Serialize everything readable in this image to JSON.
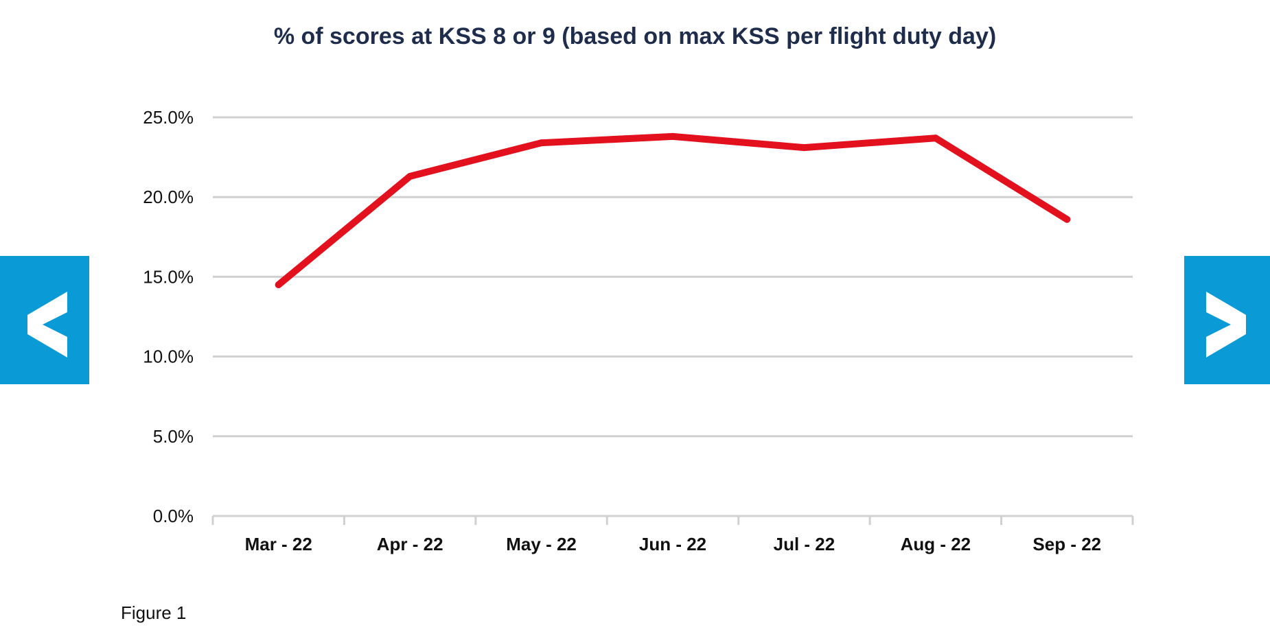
{
  "chart_data": {
    "type": "line",
    "title": "% of scores at KSS 8 or 9 (based on max KSS per flight duty day)",
    "categories": [
      "Mar - 22",
      "Apr - 22",
      "May - 22",
      "Jun - 22",
      "Jul - 22",
      "Aug - 22",
      "Sep - 22"
    ],
    "series": [
      {
        "values": [
          14.5,
          21.3,
          23.4,
          23.8,
          23.1,
          23.7,
          18.6
        ],
        "color": "#e3101e"
      }
    ],
    "ylim": [
      0,
      25
    ],
    "y_ticks": [
      "0.0%",
      "5.0%",
      "10.0%",
      "15.0%",
      "20.0%",
      "25.0%"
    ],
    "y_tick_values": [
      0,
      5,
      10,
      15,
      20,
      25
    ],
    "grid": true,
    "legend": "none",
    "xlabel": "",
    "ylabel": ""
  },
  "navigation": {
    "prev_icon": "chevron-left-icon",
    "next_icon": "chevron-right-icon",
    "color": "#0a9ad6"
  },
  "caption": "Figure 1"
}
